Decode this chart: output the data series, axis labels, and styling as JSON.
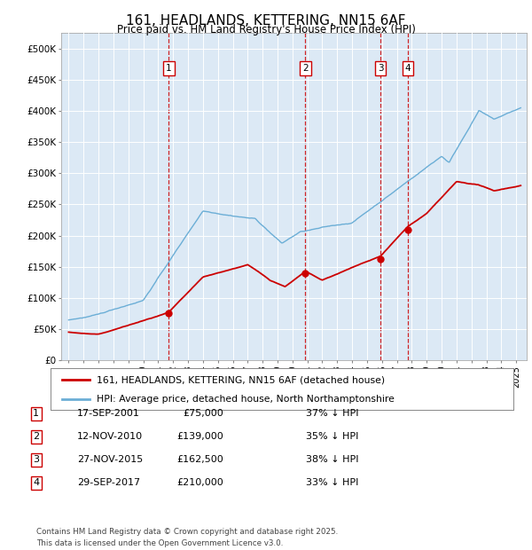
{
  "title": "161, HEADLANDS, KETTERING, NN15 6AF",
  "subtitle": "Price paid vs. HM Land Registry's House Price Index (HPI)",
  "red_label": "161, HEADLANDS, KETTERING, NN15 6AF (detached house)",
  "blue_label": "HPI: Average price, detached house, North Northamptonshire",
  "footer_line1": "Contains HM Land Registry data © Crown copyright and database right 2025.",
  "footer_line2": "This data is licensed under the Open Government Licence v3.0.",
  "transactions": [
    {
      "num": 1,
      "date": "17-SEP-2001",
      "price": "£75,000",
      "pct": "37% ↓ HPI",
      "year": 2001.71
    },
    {
      "num": 2,
      "date": "12-NOV-2010",
      "price": "£139,000",
      "pct": "35% ↓ HPI",
      "year": 2010.87
    },
    {
      "num": 3,
      "date": "27-NOV-2015",
      "price": "£162,500",
      "pct": "38% ↓ HPI",
      "year": 2015.9
    },
    {
      "num": 4,
      "date": "29-SEP-2017",
      "price": "£210,000",
      "pct": "33% ↓ HPI",
      "year": 2017.75
    }
  ],
  "transaction_values": [
    75000,
    139000,
    162500,
    210000
  ],
  "ylim": [
    0,
    525000
  ],
  "yticks": [
    0,
    50000,
    100000,
    150000,
    200000,
    250000,
    300000,
    350000,
    400000,
    450000,
    500000
  ],
  "background_color": "#dce9f5",
  "red_color": "#cc0000",
  "blue_color": "#6baed6",
  "box_color": "#cc0000"
}
